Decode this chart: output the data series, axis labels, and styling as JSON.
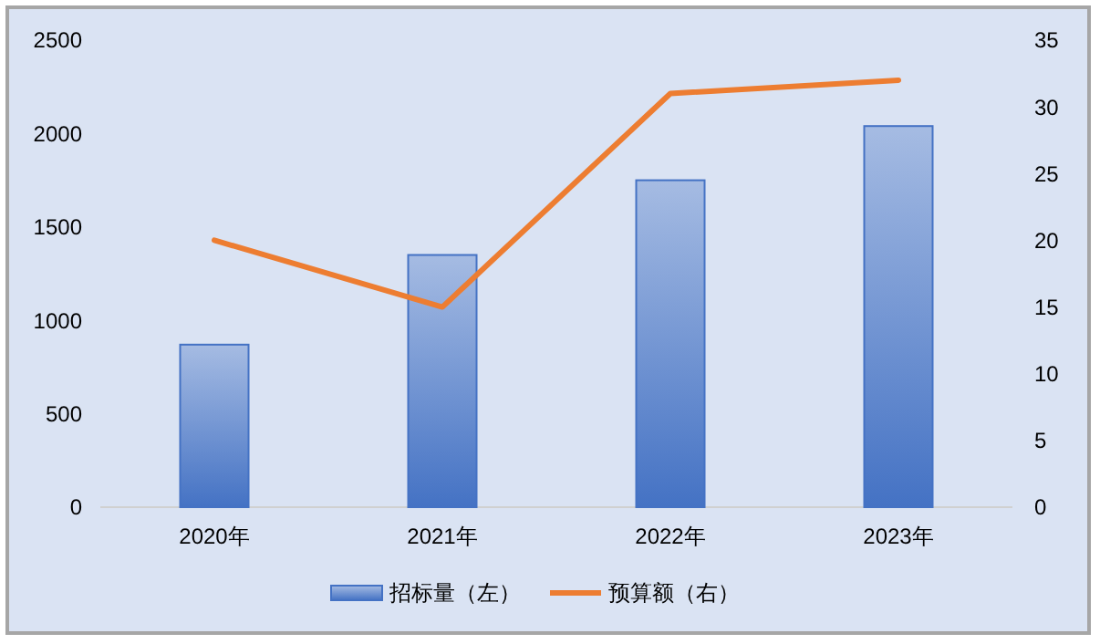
{
  "chart_data": {
    "type": "bar",
    "categories": [
      "2020年",
      "2021年",
      "2022年",
      "2023年"
    ],
    "series": [
      {
        "name": "招标量（左）",
        "color": "#4472c4",
        "values": [
          870,
          1350,
          1750,
          2040
        ]
      },
      {
        "name": "预算额（右）",
        "type": "line",
        "axis": "y2",
        "color": "#ed7d31",
        "values": [
          20,
          15,
          31,
          32
        ]
      }
    ],
    "ylim": [
      0,
      2500
    ],
    "yticks": [
      0,
      500,
      1000,
      1500,
      2000,
      2500
    ],
    "y2lim": [
      0,
      35
    ],
    "y2ticks": [
      0,
      5,
      10,
      15,
      20,
      25,
      30,
      35
    ],
    "grid": false,
    "legend": "bottom",
    "marker": "none"
  }
}
